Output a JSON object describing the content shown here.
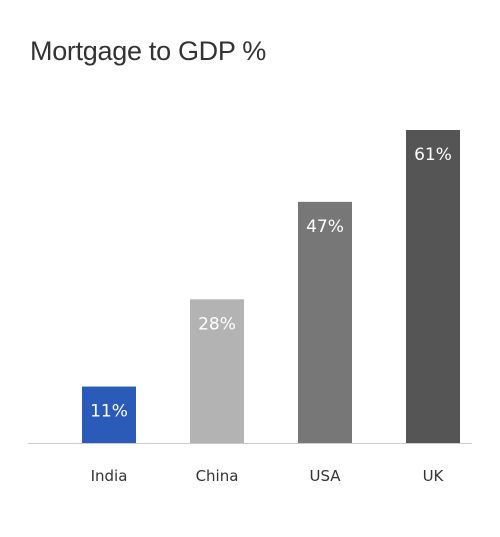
{
  "chart_data": {
    "type": "bar",
    "title": "Mortgage to GDP %",
    "xlabel": "",
    "ylabel": "",
    "categories": [
      "India",
      "China",
      "USA",
      "UK"
    ],
    "values": [
      11,
      28,
      47,
      61
    ],
    "data_labels": [
      "11%",
      "28%",
      "47%",
      "61%"
    ],
    "ylim": [
      0,
      61
    ],
    "grid": false,
    "legend": "none",
    "colors": [
      "#2a5bb8",
      "#b3b3b3",
      "#777777",
      "#555555"
    ],
    "label_colors": [
      "#ffffff",
      "#ffffff",
      "#ffffff",
      "#ffffff"
    ],
    "axis_color": "#cccccc"
  }
}
